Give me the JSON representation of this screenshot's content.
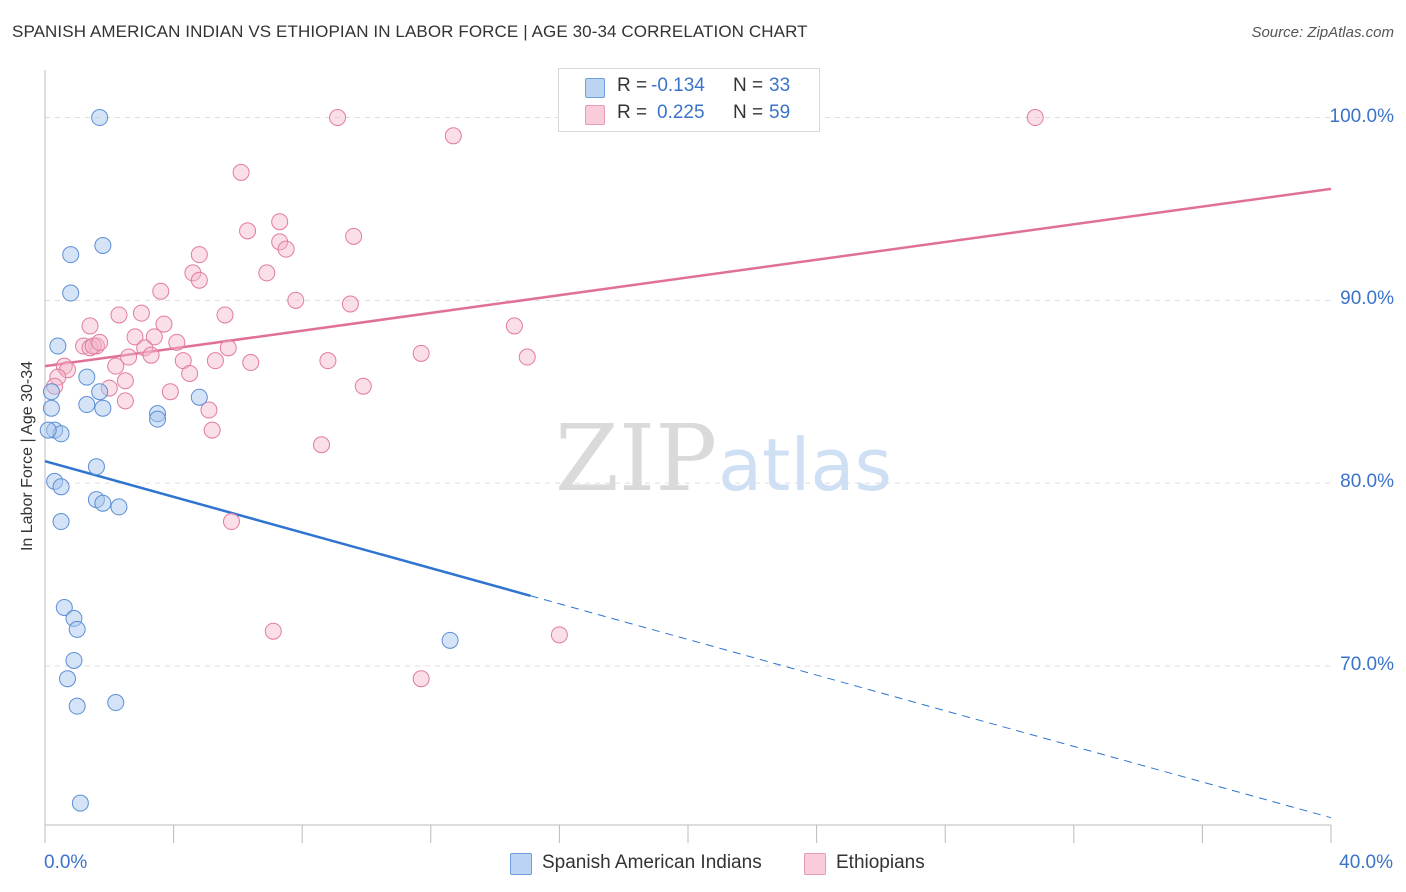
{
  "title": "SPANISH AMERICAN INDIAN VS ETHIOPIAN IN LABOR FORCE | AGE 30-34 CORRELATION CHART",
  "source": "Source: ZipAtlas.com",
  "watermark": {
    "zip": "ZIP",
    "atlas": "atlas"
  },
  "colors": {
    "blue_fill": "#a9c8ee",
    "blue_stroke": "#5b8fd6",
    "blue_line": "#2f74d0",
    "pink_fill": "#f5b8cb",
    "pink_stroke": "#e27b9e",
    "pink_line": "#e0709a",
    "grid": "#dddddd",
    "tick_text": "#3a73c9"
  },
  "legend": {
    "rows": [
      {
        "r_label": "R =",
        "r_value": "-0.134",
        "n_label": "N =",
        "n_value": "33"
      },
      {
        "r_label": "R =",
        "r_value": "0.225",
        "n_label": "N =",
        "n_value": "59"
      }
    ],
    "series": [
      "Spanish American Indians",
      "Ethiopians"
    ]
  },
  "chart_data": {
    "type": "scatter",
    "title": "SPANISH AMERICAN INDIAN VS ETHIOPIAN IN LABOR FORCE | AGE 30-34 CORRELATION CHART",
    "xlabel": "",
    "ylabel": "In Labor Force | Age 30-34",
    "xlim": [
      0,
      40
    ],
    "ylim": [
      61.3,
      102.6
    ],
    "x_tick_labels": [
      "0.0%",
      "40.0%"
    ],
    "y_ticks": [
      70,
      80,
      90,
      100
    ],
    "y_tick_labels": [
      "70.0%",
      "80.0%",
      "90.0%",
      "100.0%"
    ],
    "grid": true,
    "legend_position": "top-center",
    "series": [
      {
        "name": "Spanish American Indians",
        "r": -0.134,
        "n": 33,
        "trend": {
          "x0": 0,
          "y0": 81.2,
          "x1": 40,
          "y1": 61.7,
          "solid_until_x": 15.1
        },
        "points": [
          [
            1.7,
            100.0
          ],
          [
            1.8,
            93.0
          ],
          [
            0.8,
            92.5
          ],
          [
            0.8,
            90.4
          ],
          [
            0.4,
            87.5
          ],
          [
            1.3,
            85.8
          ],
          [
            0.2,
            85.0
          ],
          [
            1.7,
            85.0
          ],
          [
            4.8,
            84.7
          ],
          [
            0.2,
            84.1
          ],
          [
            1.3,
            84.3
          ],
          [
            1.8,
            84.1
          ],
          [
            3.5,
            83.8
          ],
          [
            3.5,
            83.5
          ],
          [
            0.3,
            82.9
          ],
          [
            0.5,
            82.7
          ],
          [
            1.6,
            80.9
          ],
          [
            0.3,
            80.1
          ],
          [
            0.5,
            79.8
          ],
          [
            1.6,
            79.1
          ],
          [
            1.8,
            78.9
          ],
          [
            2.3,
            78.7
          ],
          [
            0.5,
            77.9
          ],
          [
            12.6,
            71.4
          ],
          [
            0.6,
            73.2
          ],
          [
            0.9,
            72.6
          ],
          [
            1.0,
            72.0
          ],
          [
            0.9,
            70.3
          ],
          [
            0.7,
            69.3
          ],
          [
            1.0,
            67.8
          ],
          [
            2.2,
            68.0
          ],
          [
            1.1,
            62.5
          ],
          [
            0.1,
            82.9
          ]
        ]
      },
      {
        "name": "Ethiopians",
        "r": 0.225,
        "n": 59,
        "trend": {
          "x0": 0,
          "y0": 86.4,
          "x1": 40,
          "y1": 96.1
        },
        "points": [
          [
            9.1,
            100.0
          ],
          [
            20.8,
            100.0
          ],
          [
            30.8,
            100.0
          ],
          [
            12.7,
            99.0
          ],
          [
            6.1,
            97.0
          ],
          [
            7.3,
            94.3
          ],
          [
            6.3,
            93.8
          ],
          [
            9.6,
            93.5
          ],
          [
            7.3,
            93.2
          ],
          [
            7.5,
            92.8
          ],
          [
            4.8,
            92.5
          ],
          [
            4.6,
            91.5
          ],
          [
            6.9,
            91.5
          ],
          [
            4.8,
            91.1
          ],
          [
            3.6,
            90.5
          ],
          [
            7.8,
            90.0
          ],
          [
            9.5,
            89.8
          ],
          [
            2.3,
            89.2
          ],
          [
            3.0,
            89.3
          ],
          [
            5.6,
            89.2
          ],
          [
            1.4,
            88.6
          ],
          [
            3.7,
            88.7
          ],
          [
            14.6,
            88.6
          ],
          [
            2.8,
            88.0
          ],
          [
            3.4,
            88.0
          ],
          [
            4.1,
            87.7
          ],
          [
            1.6,
            87.5
          ],
          [
            1.2,
            87.5
          ],
          [
            1.4,
            87.4
          ],
          [
            1.5,
            87.5
          ],
          [
            1.7,
            87.7
          ],
          [
            5.7,
            87.4
          ],
          [
            3.1,
            87.4
          ],
          [
            3.3,
            87.0
          ],
          [
            11.7,
            87.1
          ],
          [
            2.6,
            86.9
          ],
          [
            8.8,
            86.7
          ],
          [
            15.0,
            86.9
          ],
          [
            4.3,
            86.7
          ],
          [
            5.3,
            86.7
          ],
          [
            6.4,
            86.6
          ],
          [
            0.6,
            86.4
          ],
          [
            0.7,
            86.2
          ],
          [
            2.2,
            86.4
          ],
          [
            4.5,
            86.0
          ],
          [
            0.4,
            85.8
          ],
          [
            2.5,
            85.6
          ],
          [
            0.3,
            85.3
          ],
          [
            9.9,
            85.3
          ],
          [
            2.0,
            85.2
          ],
          [
            3.9,
            85.0
          ],
          [
            2.5,
            84.5
          ],
          [
            5.1,
            84.0
          ],
          [
            5.2,
            82.9
          ],
          [
            8.6,
            82.1
          ],
          [
            5.8,
            77.9
          ],
          [
            7.1,
            71.9
          ],
          [
            16.0,
            71.7
          ],
          [
            11.7,
            69.3
          ]
        ]
      }
    ]
  }
}
